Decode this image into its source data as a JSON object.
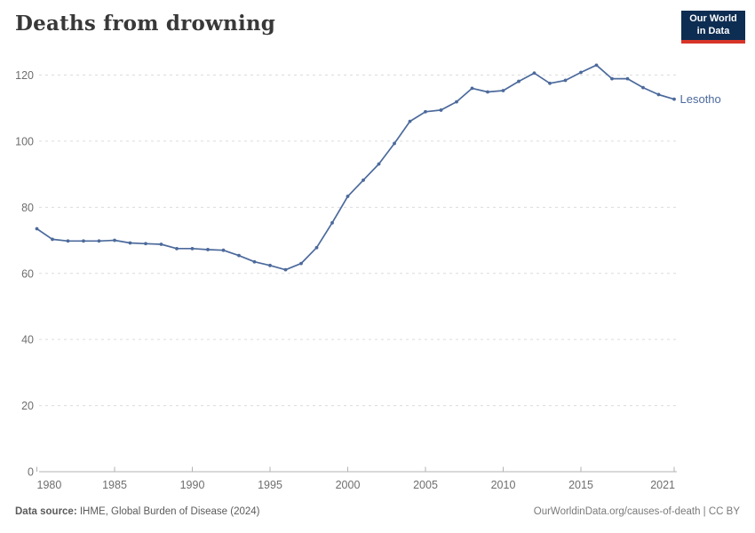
{
  "page": {
    "title": "Deaths from drowning",
    "logo": {
      "line1": "Our World",
      "line2": "in Data"
    },
    "footer": {
      "source_label": "Data source:",
      "source_text": " IHME, Global Burden of Disease (2024)",
      "credit": "OurWorldinData.org/causes-of-death | CC BY"
    }
  },
  "colors": {
    "line": "#4C6A9C",
    "grid": "#DCDCDC",
    "axis_line": "#B3B3B3",
    "axis_text": "#6E6E6E",
    "title": "#383838",
    "logo_bg": "#0E2D52",
    "logo_red": "#D8352A",
    "footer_left": "#5B5B5B",
    "footer_right": "#7A7A7A"
  },
  "chart_data": {
    "type": "line",
    "title": "Deaths from drowning",
    "xlabel": "",
    "ylabel": "",
    "ylim": [
      0,
      120
    ],
    "yticks": [
      0,
      20,
      40,
      60,
      80,
      100,
      120
    ],
    "xticks": [
      1980,
      1985,
      1990,
      1995,
      2000,
      2005,
      2010,
      2015,
      2021
    ],
    "grid": "horizontal-dashed",
    "legend_position": "end-of-line-label",
    "series": [
      {
        "name": "Lesotho",
        "x": [
          1980,
          1981,
          1982,
          1983,
          1984,
          1985,
          1986,
          1987,
          1988,
          1989,
          1990,
          1991,
          1992,
          1993,
          1994,
          1995,
          1996,
          1997,
          1998,
          1999,
          2000,
          2001,
          2002,
          2003,
          2004,
          2005,
          2006,
          2007,
          2008,
          2009,
          2010,
          2011,
          2012,
          2013,
          2014,
          2015,
          2016,
          2017,
          2018,
          2019,
          2020,
          2021
        ],
        "values": [
          73.5,
          70.3,
          69.8,
          69.8,
          69.8,
          70.0,
          69.2,
          69.0,
          68.8,
          67.5,
          67.5,
          67.2,
          67.0,
          65.4,
          63.5,
          62.4,
          61.1,
          63.0,
          67.8,
          75.3,
          83.3,
          88.2,
          93.1,
          99.3,
          106.0,
          108.9,
          109.4,
          111.9,
          116.0,
          114.9,
          115.3,
          118.1,
          120.6,
          117.5,
          118.4,
          120.8,
          123.0,
          118.9,
          118.9,
          116.2,
          114.1,
          112.7
        ]
      }
    ]
  }
}
